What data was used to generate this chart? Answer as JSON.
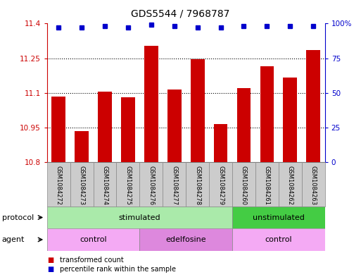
{
  "title": "GDS5544 / 7968787",
  "samples": [
    "GSM1084272",
    "GSM1084273",
    "GSM1084274",
    "GSM1084275",
    "GSM1084276",
    "GSM1084277",
    "GSM1084278",
    "GSM1084279",
    "GSM1084260",
    "GSM1084261",
    "GSM1084262",
    "GSM1084263"
  ],
  "bar_values": [
    11.085,
    10.935,
    11.105,
    11.08,
    11.305,
    11.115,
    11.245,
    10.965,
    11.12,
    11.215,
    11.165,
    11.285
  ],
  "percentile_values": [
    97,
    97,
    98,
    97,
    99,
    98,
    97,
    97,
    98,
    98,
    98,
    98
  ],
  "bar_color": "#cc0000",
  "percentile_color": "#0000cc",
  "ylim_left": [
    10.8,
    11.4
  ],
  "ylim_right": [
    0,
    100
  ],
  "yticks_left": [
    10.8,
    10.95,
    11.1,
    11.25,
    11.4
  ],
  "ytick_labels_left": [
    "10.8",
    "10.95",
    "11.1",
    "11.25",
    "11.4"
  ],
  "yticks_right": [
    0,
    25,
    50,
    75,
    100
  ],
  "ytick_labels_right": [
    "0",
    "25",
    "50",
    "75",
    "100%"
  ],
  "protocol_groups": [
    {
      "label": "stimulated",
      "start": 0,
      "end": 8,
      "color": "#aaeaaa"
    },
    {
      "label": "unstimulated",
      "start": 8,
      "end": 12,
      "color": "#44cc44"
    }
  ],
  "agent_groups": [
    {
      "label": "control",
      "start": 0,
      "end": 4,
      "color": "#f4aaf4"
    },
    {
      "label": "edelfosine",
      "start": 4,
      "end": 8,
      "color": "#dd88dd"
    },
    {
      "label": "control",
      "start": 8,
      "end": 12,
      "color": "#f4aaf4"
    }
  ],
  "legend_items": [
    {
      "label": "transformed count",
      "color": "#cc0000"
    },
    {
      "label": "percentile rank within the sample",
      "color": "#0000cc"
    }
  ],
  "protocol_label": "protocol",
  "agent_label": "agent",
  "tick_color_left": "#cc0000",
  "tick_color_right": "#0000cc",
  "label_row_color": "#cccccc",
  "label_row_edge": "#888888"
}
